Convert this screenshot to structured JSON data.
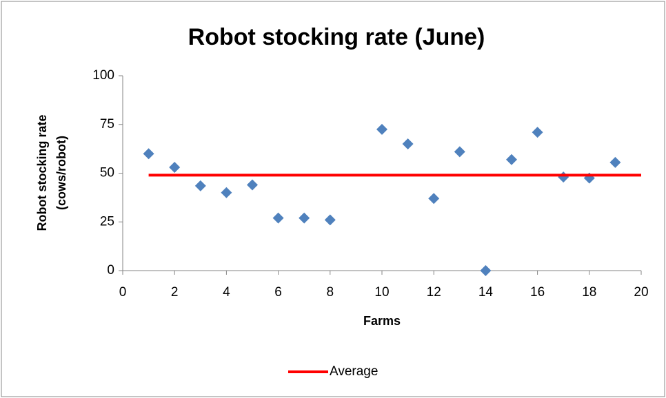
{
  "chart_data": {
    "type": "scatter",
    "title": "Robot stocking rate (June)",
    "x_label": "Farms",
    "y_label": [
      "Robot stocking rate",
      "(cows/robot)"
    ],
    "series": [
      {
        "kind": "scatter",
        "color": "#4f81bd",
        "x": [
          1,
          2,
          3,
          4,
          5,
          6,
          7,
          8,
          10,
          11,
          12,
          13,
          14,
          15,
          16,
          17,
          18,
          19
        ],
        "values": [
          60,
          53,
          43.5,
          40,
          44,
          27,
          27,
          26,
          72.5,
          65,
          37,
          61,
          0,
          57,
          71,
          48,
          47.5,
          55.5
        ]
      },
      {
        "kind": "line",
        "name": "Average",
        "color": "#ff0000",
        "x": [
          1,
          20
        ],
        "values": [
          49,
          49
        ]
      }
    ],
    "xlim": [
      0,
      20
    ],
    "xticks": [
      0,
      2,
      4,
      6,
      8,
      10,
      12,
      14,
      16,
      18,
      20
    ],
    "ylim": [
      0,
      100
    ],
    "yticks": [
      0,
      25,
      50,
      75,
      100
    ],
    "legend": "bottom"
  }
}
